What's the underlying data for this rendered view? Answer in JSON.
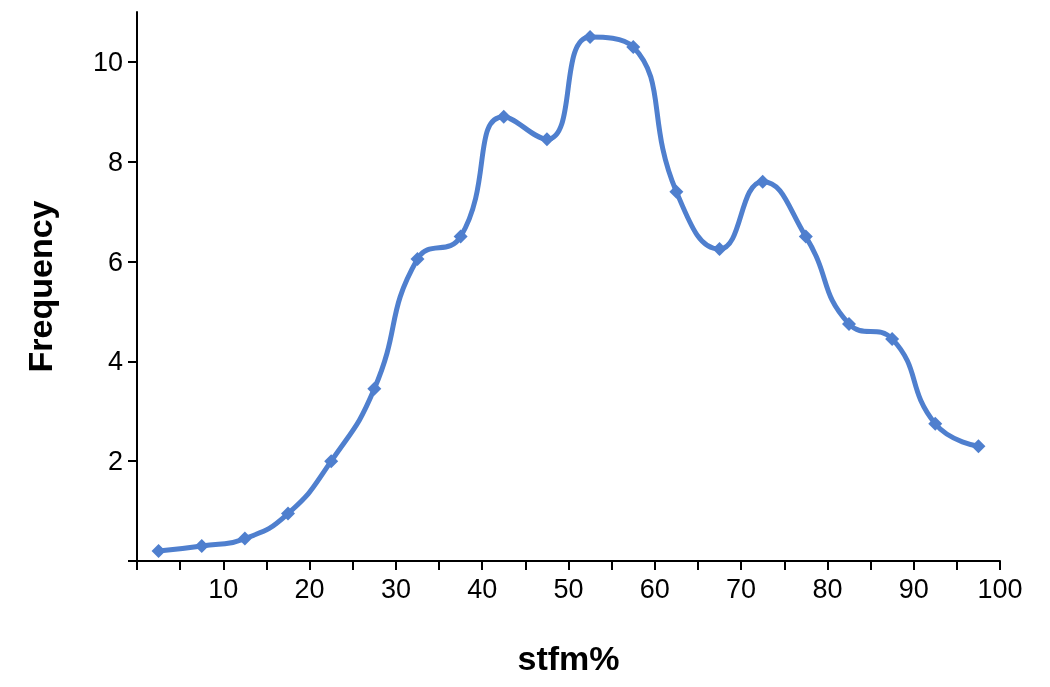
{
  "chart_data": {
    "type": "line",
    "xlabel": "stfm%",
    "ylabel": "Frequency",
    "x": [
      2.5,
      7.5,
      12.5,
      17.5,
      22.5,
      27.5,
      32.5,
      37.5,
      42.5,
      47.5,
      52.5,
      57.5,
      62.5,
      67.5,
      72.5,
      77.5,
      82.5,
      87.5,
      92.5,
      97.5
    ],
    "series": [
      {
        "color": "#4f7fce",
        "values": [
          0.2,
          0.3,
          0.45,
          0.95,
          2.0,
          3.45,
          6.05,
          6.5,
          8.9,
          8.45,
          10.5,
          10.3,
          7.4,
          6.25,
          7.6,
          6.5,
          4.75,
          4.45,
          2.75,
          2.3
        ]
      }
    ],
    "xlim": [
      0,
      100
    ],
    "xticks": [
      {
        "value": 0,
        "label": null
      },
      {
        "value": 5,
        "label": null
      },
      10,
      {
        "value": 15,
        "label": null
      },
      20,
      {
        "value": 25,
        "label": null
      },
      30,
      {
        "value": 35,
        "label": null
      },
      40,
      {
        "value": 45,
        "label": null
      },
      50,
      {
        "value": 55,
        "label": null
      },
      60,
      {
        "value": 65,
        "label": null
      },
      70,
      {
        "value": 75,
        "label": null
      },
      80,
      {
        "value": 85,
        "label": null
      },
      90,
      {
        "value": 95,
        "label": null
      },
      100
    ],
    "ylim": [
      0,
      11
    ],
    "yticks": [
      {
        "value": 0,
        "label": null
      },
      2,
      4,
      6,
      8,
      10
    ],
    "marker": "diamond",
    "line_style": "solid"
  }
}
